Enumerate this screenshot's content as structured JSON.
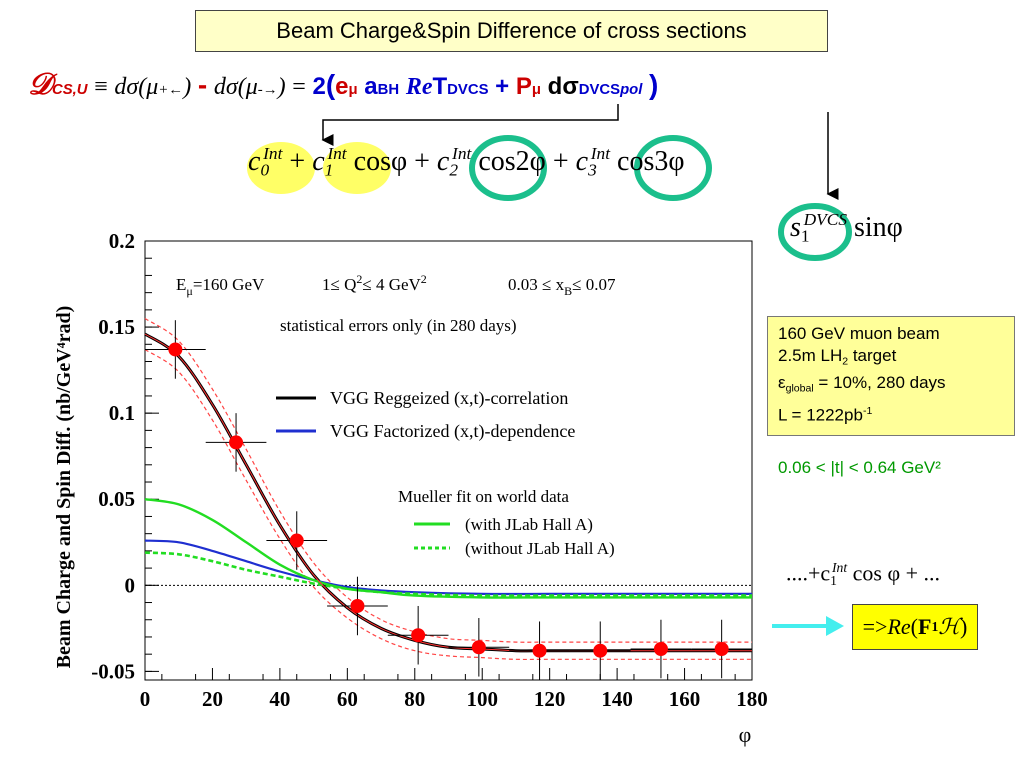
{
  "slide": {
    "title": "Beam Charge&Spin Difference of cross sections",
    "formula": {
      "d_symbol": "𝒟",
      "d_sub": "CS,U",
      "equiv": "≡",
      "lhs1": "dσ(μ",
      "lhs1_sup": "+←",
      "lhs1_close": ")",
      "minus": "-",
      "lhs2": "dσ(μ",
      "lhs2_sup": "-→",
      "lhs2_close": ")",
      "eq": "=",
      "two": "2",
      "open": "(",
      "e": "e",
      "e_sub": "μ",
      "a": "a",
      "a_sup": "BH",
      "re": "Re",
      "T": "T",
      "T_sup": "DVCS",
      "plus": "+",
      "P": "P",
      "P_sub": "μ",
      "dsigma": "dσ",
      "dsigma_sup": "DVCS",
      "dsigma_sub": "pol",
      "close": ")"
    },
    "coef_line": {
      "c0": "c",
      "c0_sub": "0",
      "c0_sup": "Int",
      "plus1": "+",
      "c1": "c",
      "c1_sub": "1",
      "c1_sup": "Int",
      "cos1": "cosφ",
      "plus2": "+",
      "c2": "c",
      "c2_sub": "2",
      "c2_sup": "Int",
      "cos2": "cos2φ",
      "plus3": "+",
      "c3": "c",
      "c3_sub": "3",
      "c3_sup": "Int",
      "cos3": "cos3φ"
    },
    "s1_term": {
      "s": "s",
      "s_sub": "1",
      "s_sup": "DVCS",
      "sin": "sinφ"
    },
    "info_box": {
      "line1": "160 GeV muon beam",
      "line2_a": "2.5m LH",
      "line2_sub": "2",
      "line2_b": " target",
      "line3_eps": "ε",
      "line3_sub": "global",
      "line3_b": " = 10%, 280 days",
      "line4_a": "L = 1222pb",
      "line4_sup": "-1"
    },
    "t_range": "0.06 < |t| < 0.64 GeV²",
    "series_eq": {
      "prefix": "....+c",
      "sub": "1",
      "sup": "Int",
      "suffix": " cos φ + ..."
    },
    "result_box": {
      "arrow": "=>",
      "re": "Re",
      "open": "(",
      "F": "F",
      "F_sub": "1",
      "H": "ℋ",
      "close": ")"
    },
    "colors": {
      "title_bg": "#ffffc8",
      "formula_red": "#cc0000",
      "formula_blue": "#0000cc",
      "circle_teal": "#1bbf8c",
      "ellipse_yellow": "#ffff66",
      "info_bg": "#ffff99",
      "t_range_green": "#009900",
      "result_bg": "#ffff00",
      "arrow_cyan": "#44eeee"
    }
  },
  "chart_data": {
    "type": "line",
    "xlabel": "φ",
    "ylabel": "Beam Charge and Spin Diff. (nb/GeV⁴rad)",
    "xlim": [
      0,
      180
    ],
    "ylim": [
      -0.055,
      0.2
    ],
    "x_ticks": [
      0,
      20,
      40,
      60,
      80,
      100,
      120,
      140,
      160,
      180
    ],
    "y_ticks": [
      -0.05,
      0,
      0.05,
      0.1,
      0.15,
      0.2
    ],
    "y_tick_labels": [
      "-0.05",
      "0",
      "0.05",
      "0.1",
      "0.15",
      "0.2"
    ],
    "annotations": {
      "kinematics_E": "E",
      "kinematics_E_sub": "μ",
      "kinematics_E_val": "=160 GeV",
      "kinematics_Q": "1≤ Q",
      "kinematics_Q_sup": "2",
      "kinematics_Q_val": "≤ 4 GeV",
      "kinematics_Q_unit_sup": "2",
      "kinematics_x": "0.03 ≤ x",
      "kinematics_x_sub": "B",
      "kinematics_x_val": "≤ 0.07",
      "stat_note": "statistical errors only (in 280 days)",
      "mueller_header": "Mueller fit on world data"
    },
    "legend": [
      {
        "name": "VGG Reggeized (x,t)-correlation",
        "color": "#000000",
        "style": "solid"
      },
      {
        "name": "VGG Factorized (x,t)-dependence",
        "color": "#1f2fd0",
        "style": "solid"
      },
      {
        "name": "(with JLab Hall A)",
        "color": "#22dd22",
        "style": "solid"
      },
      {
        "name": "(without JLab Hall A)",
        "color": "#22dd22",
        "style": "dashed"
      }
    ],
    "series": [
      {
        "name": "VGG Reggeized (x,t)-correlation",
        "x": [
          0,
          10,
          20,
          30,
          40,
          50,
          60,
          70,
          80,
          90,
          100,
          110,
          120,
          140,
          160,
          180
        ],
        "values": [
          0.146,
          0.133,
          0.105,
          0.07,
          0.035,
          0.006,
          -0.013,
          -0.025,
          -0.032,
          -0.036,
          -0.037,
          -0.038,
          -0.038,
          -0.038,
          -0.038,
          -0.038
        ]
      },
      {
        "name": "VGG Factorized (x,t)-dependence",
        "x": [
          0,
          10,
          20,
          30,
          40,
          50,
          60,
          70,
          80,
          100,
          120,
          140,
          160,
          180
        ],
        "values": [
          0.026,
          0.025,
          0.02,
          0.014,
          0.008,
          0.003,
          -0.001,
          -0.003,
          -0.004,
          -0.005,
          -0.005,
          -0.005,
          -0.005,
          -0.005
        ]
      },
      {
        "name": "(with JLab Hall A)",
        "x": [
          0,
          10,
          20,
          30,
          40,
          50,
          60,
          70,
          80,
          100,
          120,
          140,
          160,
          180
        ],
        "values": [
          0.05,
          0.047,
          0.038,
          0.025,
          0.012,
          0.003,
          -0.002,
          -0.004,
          -0.006,
          -0.007,
          -0.007,
          -0.007,
          -0.007,
          -0.007
        ]
      },
      {
        "name": "(without JLab Hall A)",
        "x": [
          0,
          10,
          20,
          30,
          40,
          50,
          60,
          70,
          80,
          100,
          120,
          140,
          160,
          180
        ],
        "values": [
          0.019,
          0.018,
          0.014,
          0.009,
          0.005,
          0.001,
          -0.002,
          -0.004,
          -0.005,
          -0.006,
          -0.006,
          -0.006,
          -0.006,
          -0.006
        ]
      }
    ],
    "band": {
      "x": [
        0,
        10,
        20,
        30,
        40,
        50,
        60,
        70,
        80,
        90,
        100,
        110,
        120,
        140,
        160,
        180
      ],
      "upper": [
        0.155,
        0.142,
        0.114,
        0.079,
        0.043,
        0.013,
        -0.007,
        -0.02,
        -0.027,
        -0.031,
        -0.032,
        -0.033,
        -0.033,
        -0.033,
        -0.033,
        -0.033
      ],
      "lower": [
        0.137,
        0.124,
        0.096,
        0.061,
        0.027,
        -0.001,
        -0.019,
        -0.031,
        -0.038,
        -0.041,
        -0.042,
        -0.043,
        -0.043,
        -0.043,
        -0.043,
        -0.043
      ]
    },
    "points": {
      "x": [
        9,
        27,
        45,
        63,
        81,
        99,
        117,
        135,
        153,
        171
      ],
      "y": [
        0.137,
        0.083,
        0.026,
        -0.012,
        -0.029,
        -0.036,
        -0.038,
        -0.038,
        -0.037,
        -0.037
      ],
      "yerr": [
        0.017,
        0.017,
        0.017,
        0.017,
        0.017,
        0.017,
        0.017,
        0.017,
        0.017,
        0.017
      ],
      "xerr": 9
    }
  }
}
